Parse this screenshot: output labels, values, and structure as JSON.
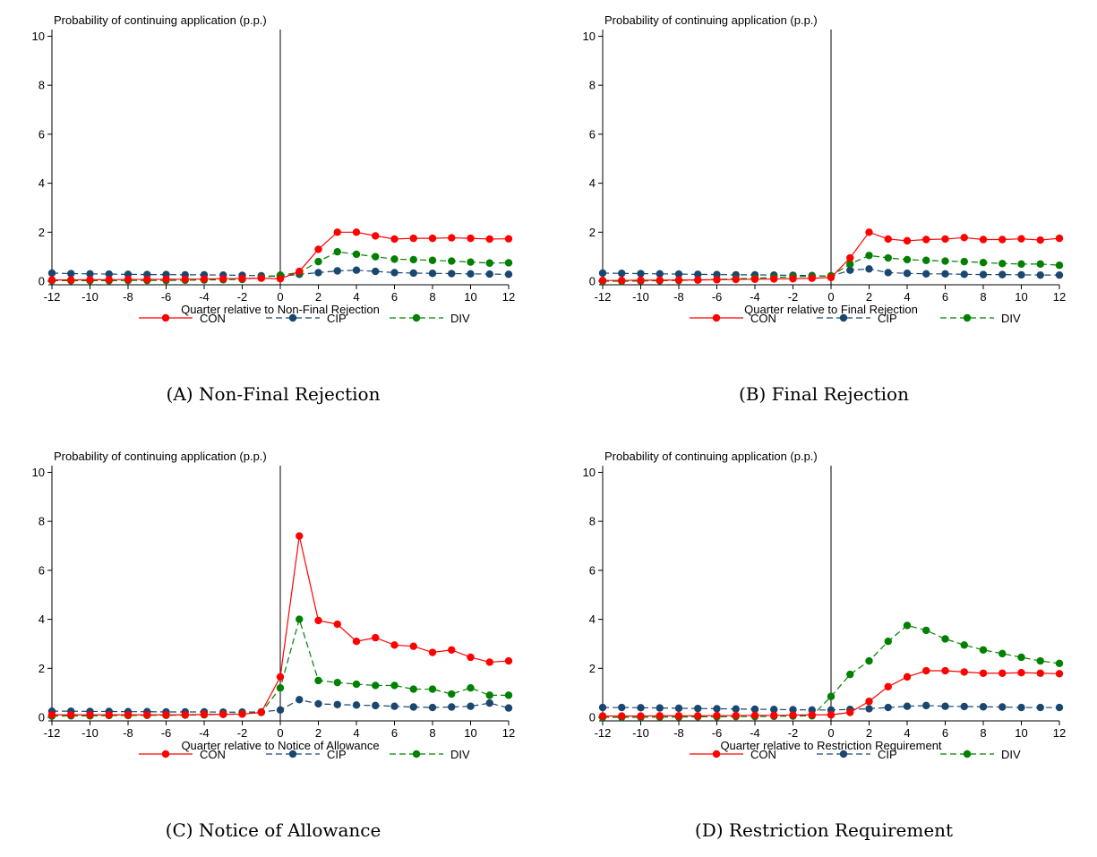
{
  "captions": [
    "(A) Non-Final Rejection",
    "(B) Final Rejection",
    "(C) Notice of Allowance",
    "(D) Restriction Requirement"
  ],
  "colors": {
    "CON": "#ff0000",
    "CIP": "#1a476f",
    "DIV": "#008000",
    "axis": "#000000"
  },
  "chart_data": [
    {
      "type": "line",
      "title": "",
      "ylabel": "Probability of continuing application (p.p.)",
      "xlabel": "Quarter relative to Non-Final Rejection",
      "x": [
        -12,
        -11,
        -10,
        -9,
        -8,
        -7,
        -6,
        -5,
        -4,
        -3,
        -2,
        -1,
        0,
        1,
        2,
        3,
        4,
        5,
        6,
        7,
        8,
        9,
        10,
        11,
        12
      ],
      "xticks": [
        -12,
        -10,
        -8,
        -6,
        -4,
        -2,
        0,
        2,
        4,
        6,
        8,
        10,
        12
      ],
      "yticks": [
        0,
        2,
        4,
        6,
        8,
        10
      ],
      "ylim": [
        0,
        10.2
      ],
      "vline": 0,
      "legend": [
        "CON",
        "CIP",
        "DIV"
      ],
      "legend_position": "bottom",
      "series": [
        {
          "name": "CON",
          "style": "solid",
          "values": [
            0.05,
            0.05,
            0.06,
            0.06,
            0.07,
            0.07,
            0.08,
            0.08,
            0.09,
            0.1,
            0.11,
            0.12,
            0.1,
            0.4,
            1.3,
            2.0,
            2.0,
            1.85,
            1.72,
            1.75,
            1.75,
            1.77,
            1.75,
            1.72,
            1.73
          ]
        },
        {
          "name": "CIP",
          "style": "dashed",
          "values": [
            0.33,
            0.31,
            0.3,
            0.29,
            0.28,
            0.27,
            0.27,
            0.26,
            0.26,
            0.25,
            0.24,
            0.22,
            0.2,
            0.28,
            0.35,
            0.42,
            0.45,
            0.4,
            0.35,
            0.33,
            0.32,
            0.31,
            0.3,
            0.29,
            0.28
          ]
        },
        {
          "name": "DIV",
          "style": "dashed",
          "values": [
            0.02,
            0.02,
            0.02,
            0.02,
            0.03,
            0.03,
            0.03,
            0.04,
            0.05,
            0.06,
            0.07,
            0.15,
            0.25,
            0.35,
            0.8,
            1.2,
            1.1,
            1.0,
            0.9,
            0.88,
            0.85,
            0.82,
            0.78,
            0.74,
            0.75
          ]
        }
      ]
    },
    {
      "type": "line",
      "title": "",
      "ylabel": "Probability of continuing application (p.p.)",
      "xlabel": "Quarter relative to Final Rejection",
      "x": [
        -12,
        -11,
        -10,
        -9,
        -8,
        -7,
        -6,
        -5,
        -4,
        -3,
        -2,
        -1,
        0,
        1,
        2,
        3,
        4,
        5,
        6,
        7,
        8,
        9,
        10,
        11,
        12
      ],
      "xticks": [
        -12,
        -10,
        -8,
        -6,
        -4,
        -2,
        0,
        2,
        4,
        6,
        8,
        10,
        12
      ],
      "yticks": [
        0,
        2,
        4,
        6,
        8,
        10
      ],
      "ylim": [
        0,
        10.2
      ],
      "vline": 0,
      "legend": [
        "CON",
        "CIP",
        "DIV"
      ],
      "legend_position": "bottom",
      "series": [
        {
          "name": "CON",
          "style": "solid",
          "values": [
            0.03,
            0.03,
            0.04,
            0.04,
            0.05,
            0.05,
            0.06,
            0.07,
            0.08,
            0.09,
            0.1,
            0.12,
            0.15,
            0.95,
            2.0,
            1.72,
            1.65,
            1.7,
            1.72,
            1.78,
            1.7,
            1.7,
            1.73,
            1.68,
            1.75
          ]
        },
        {
          "name": "CIP",
          "style": "dashed",
          "values": [
            0.33,
            0.32,
            0.31,
            0.3,
            0.29,
            0.28,
            0.27,
            0.26,
            0.26,
            0.25,
            0.24,
            0.23,
            0.2,
            0.45,
            0.5,
            0.35,
            0.32,
            0.3,
            0.3,
            0.28,
            0.27,
            0.27,
            0.26,
            0.25,
            0.25
          ]
        },
        {
          "name": "DIV",
          "style": "dashed",
          "values": [
            0.0,
            0.0,
            0.01,
            0.02,
            0.03,
            0.05,
            0.07,
            0.1,
            0.12,
            0.15,
            0.18,
            0.2,
            0.22,
            0.7,
            1.05,
            0.95,
            0.88,
            0.85,
            0.82,
            0.8,
            0.76,
            0.72,
            0.7,
            0.7,
            0.65
          ]
        }
      ]
    },
    {
      "type": "line",
      "title": "",
      "ylabel": "Probability of continuing application (p.p.)",
      "xlabel": "Quarter relative to Notice of Allowance",
      "x": [
        -12,
        -11,
        -10,
        -9,
        -8,
        -7,
        -6,
        -5,
        -4,
        -3,
        -2,
        -1,
        0,
        1,
        2,
        3,
        4,
        5,
        6,
        7,
        8,
        9,
        10,
        11,
        12
      ],
      "xticks": [
        -12,
        -10,
        -8,
        -6,
        -4,
        -2,
        0,
        2,
        4,
        6,
        8,
        10,
        12
      ],
      "yticks": [
        0,
        2,
        4,
        6,
        8,
        10
      ],
      "ylim": [
        0,
        10.2
      ],
      "vline": 0,
      "legend": [
        "CON",
        "CIP",
        "DIV"
      ],
      "legend_position": "bottom",
      "series": [
        {
          "name": "CON",
          "style": "solid",
          "values": [
            0.1,
            0.1,
            0.1,
            0.1,
            0.1,
            0.1,
            0.1,
            0.1,
            0.12,
            0.12,
            0.13,
            0.2,
            1.65,
            7.4,
            3.95,
            3.8,
            3.1,
            3.25,
            2.95,
            2.9,
            2.65,
            2.75,
            2.45,
            2.25,
            2.3
          ]
        },
        {
          "name": "CIP",
          "style": "dashed",
          "values": [
            0.25,
            0.25,
            0.24,
            0.24,
            0.23,
            0.23,
            0.22,
            0.22,
            0.22,
            0.21,
            0.21,
            0.22,
            0.3,
            0.72,
            0.55,
            0.52,
            0.5,
            0.48,
            0.45,
            0.42,
            0.4,
            0.42,
            0.45,
            0.58,
            0.38
          ]
        },
        {
          "name": "DIV",
          "style": "dashed",
          "values": [
            0.05,
            0.06,
            0.06,
            0.07,
            0.07,
            0.08,
            0.08,
            0.09,
            0.1,
            0.12,
            0.15,
            0.2,
            1.2,
            4.0,
            1.5,
            1.42,
            1.35,
            1.3,
            1.3,
            1.15,
            1.15,
            0.95,
            1.2,
            0.9,
            0.9
          ]
        }
      ]
    },
    {
      "type": "line",
      "title": "",
      "ylabel": "Probability of continuing application (p.p.)",
      "xlabel": "Quarter relative to Restriction Requirement",
      "x": [
        -12,
        -11,
        -10,
        -9,
        -8,
        -7,
        -6,
        -5,
        -4,
        -3,
        -2,
        -1,
        0,
        1,
        2,
        3,
        4,
        5,
        6,
        7,
        8,
        9,
        10,
        11,
        12
      ],
      "xticks": [
        -12,
        -10,
        -8,
        -6,
        -4,
        -2,
        0,
        2,
        4,
        6,
        8,
        10,
        12
      ],
      "yticks": [
        0,
        2,
        4,
        6,
        8,
        10
      ],
      "ylim": [
        0,
        10.2
      ],
      "vline": 0,
      "legend": [
        "CON",
        "CIP",
        "DIV"
      ],
      "legend_position": "bottom",
      "series": [
        {
          "name": "CON",
          "style": "solid",
          "values": [
            0.05,
            0.05,
            0.05,
            0.06,
            0.06,
            0.06,
            0.07,
            0.07,
            0.08,
            0.08,
            0.09,
            0.1,
            0.1,
            0.2,
            0.65,
            1.25,
            1.65,
            1.9,
            1.9,
            1.85,
            1.8,
            1.8,
            1.82,
            1.8,
            1.78
          ]
        },
        {
          "name": "CIP",
          "style": "dashed",
          "values": [
            0.4,
            0.4,
            0.39,
            0.38,
            0.37,
            0.36,
            0.35,
            0.34,
            0.33,
            0.32,
            0.31,
            0.3,
            0.3,
            0.32,
            0.35,
            0.4,
            0.45,
            0.48,
            0.45,
            0.44,
            0.43,
            0.42,
            0.4,
            0.4,
            0.4
          ]
        },
        {
          "name": "DIV",
          "style": "dashed",
          "values": [
            0.0,
            0.0,
            0.0,
            0.01,
            0.01,
            0.02,
            0.02,
            0.03,
            0.03,
            0.04,
            0.05,
            0.06,
            0.85,
            1.75,
            2.3,
            3.1,
            3.75,
            3.55,
            3.2,
            2.95,
            2.75,
            2.6,
            2.45,
            2.3,
            2.2
          ]
        }
      ]
    }
  ]
}
